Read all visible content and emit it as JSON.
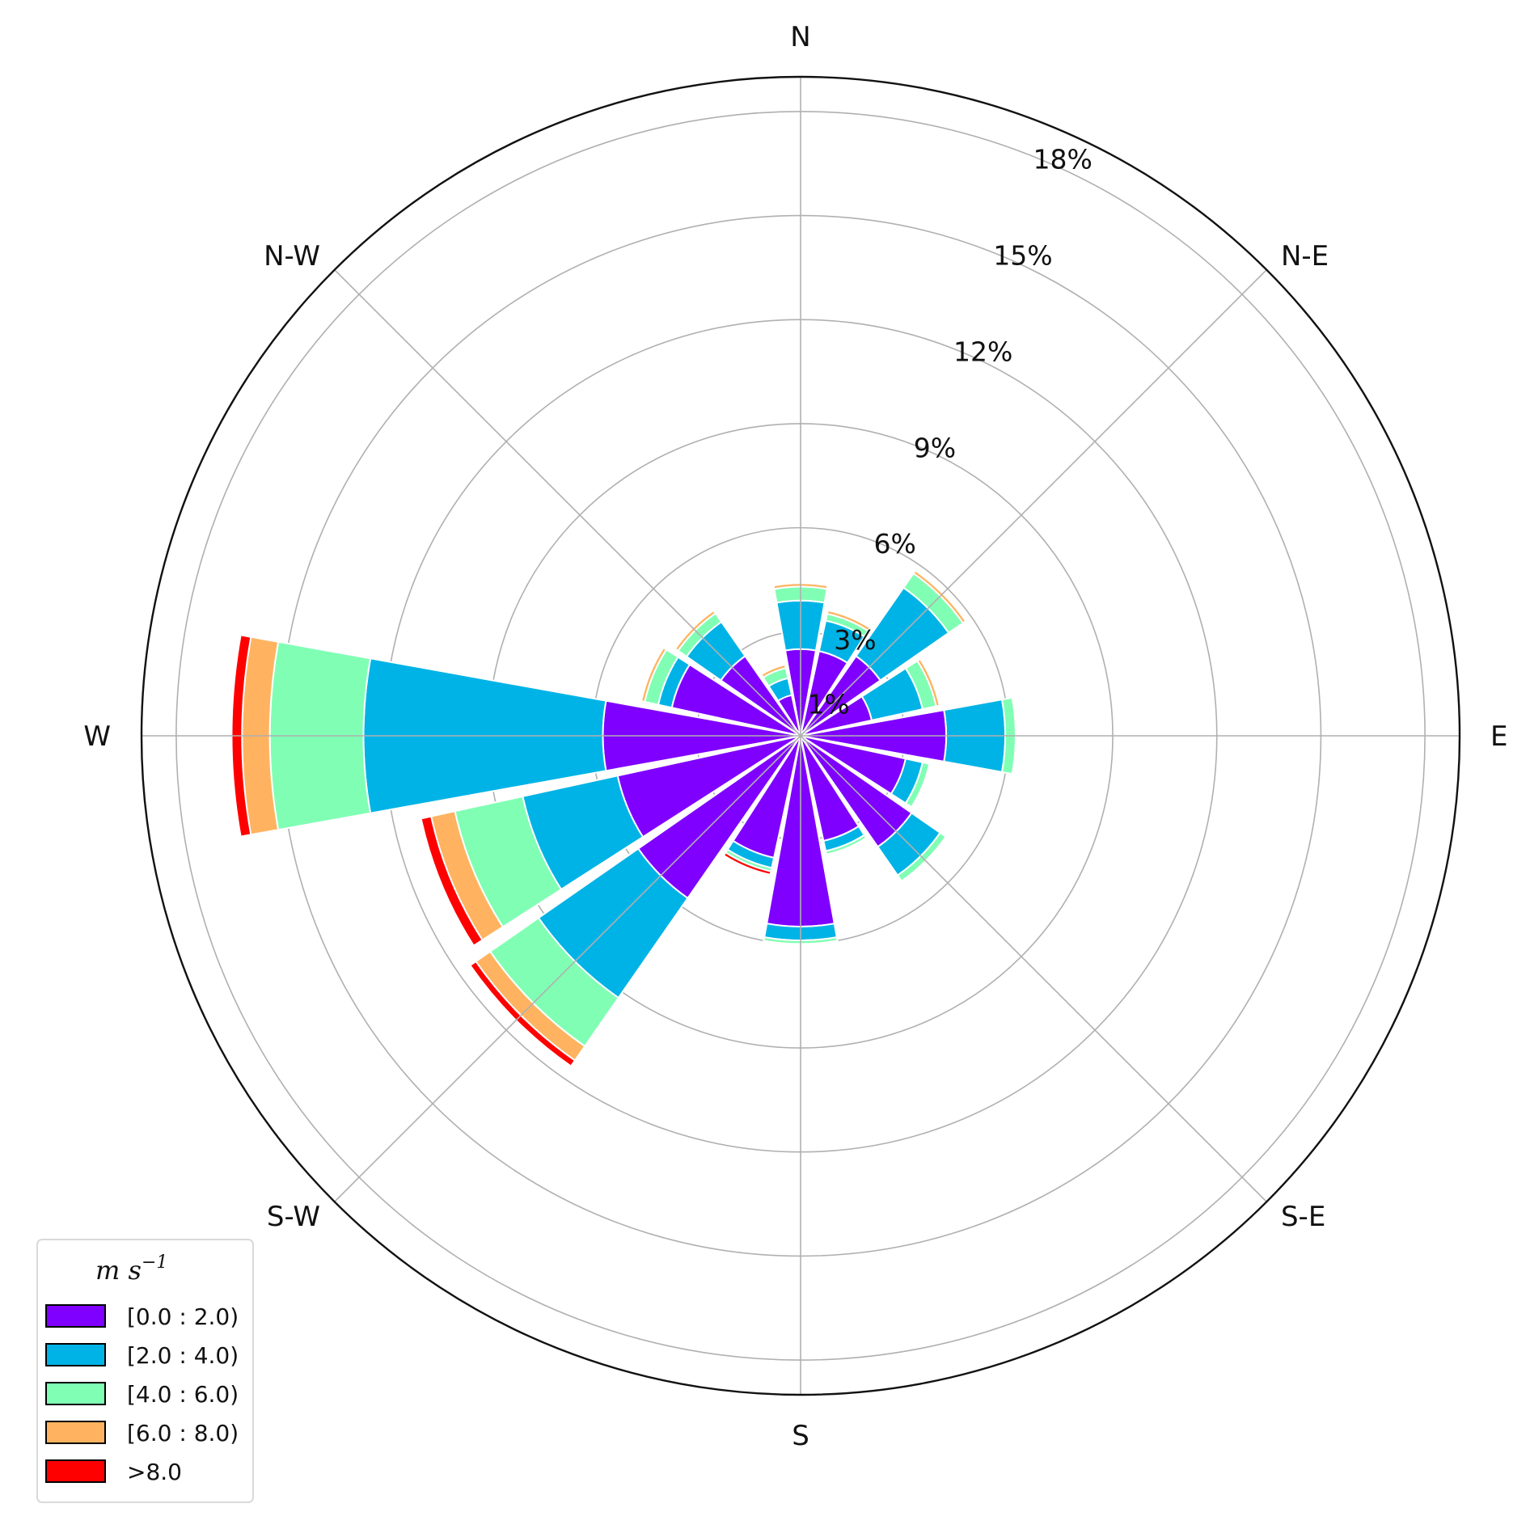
{
  "chart_data": {
    "type": "windrose",
    "directions": [
      "N",
      "NNE",
      "NE",
      "ENE",
      "E",
      "ESE",
      "SE",
      "SSE",
      "S",
      "SSW",
      "SW",
      "WSW",
      "W",
      "WNW",
      "NW",
      "NNW"
    ],
    "compass_labels": [
      "E",
      "N-E",
      "N",
      "N-W",
      "W",
      "S-W",
      "S",
      "S-E"
    ],
    "radial_ticks": [
      1,
      3,
      6,
      9,
      12,
      15,
      18
    ],
    "radial_tick_labels": [
      "1%",
      "3%",
      "6%",
      "9%",
      "12%",
      "15%",
      "18%"
    ],
    "rmax": 19,
    "legend_title_main": "m s",
    "legend_title_exp": "−1",
    "legend_position": "lower-left",
    "bins": [
      {
        "label": "[0.0 : 2.0)",
        "color": "#7f00ff"
      },
      {
        "label": "[2.0 : 4.0)",
        "color": "#00b3e6"
      },
      {
        "label": "[4.0 : 6.0)",
        "color": "#80ffb4"
      },
      {
        "label": "[6.0 : 8.0)",
        "color": "#ffb360"
      },
      {
        "label": ">8.0",
        "color": "#ff0000"
      }
    ],
    "cumulative_values": [
      [
        2.5,
        3.9,
        4.3,
        4.4,
        4.4
      ],
      [
        2.5,
        3.4,
        3.6,
        3.7,
        3.7
      ],
      [
        2.8,
        5.2,
        5.7,
        5.8,
        5.8
      ],
      [
        2.1,
        3.6,
        4.0,
        4.1,
        4.1
      ],
      [
        4.2,
        5.9,
        6.2,
        6.2,
        6.2
      ],
      [
        3.1,
        3.6,
        3.8,
        3.8,
        3.8
      ],
      [
        3.9,
        4.9,
        5.1,
        5.1,
        5.1
      ],
      [
        3.1,
        3.4,
        3.5,
        3.5,
        3.5
      ],
      [
        5.5,
        5.9,
        6.0,
        6.0,
        6.0
      ],
      [
        3.6,
        3.9,
        4.0,
        4.0,
        4.1
      ],
      [
        5.7,
        9.2,
        10.9,
        11.4,
        11.6
      ],
      [
        5.4,
        8.2,
        10.2,
        10.9,
        11.2
      ],
      [
        5.7,
        12.6,
        15.3,
        16.1,
        16.4
      ],
      [
        3.8,
        4.2,
        4.6,
        4.7,
        4.7
      ],
      [
        2.8,
        4.0,
        4.3,
        4.4,
        4.4
      ],
      [
        1.2,
        1.7,
        2.0,
        2.1,
        2.1
      ]
    ]
  }
}
